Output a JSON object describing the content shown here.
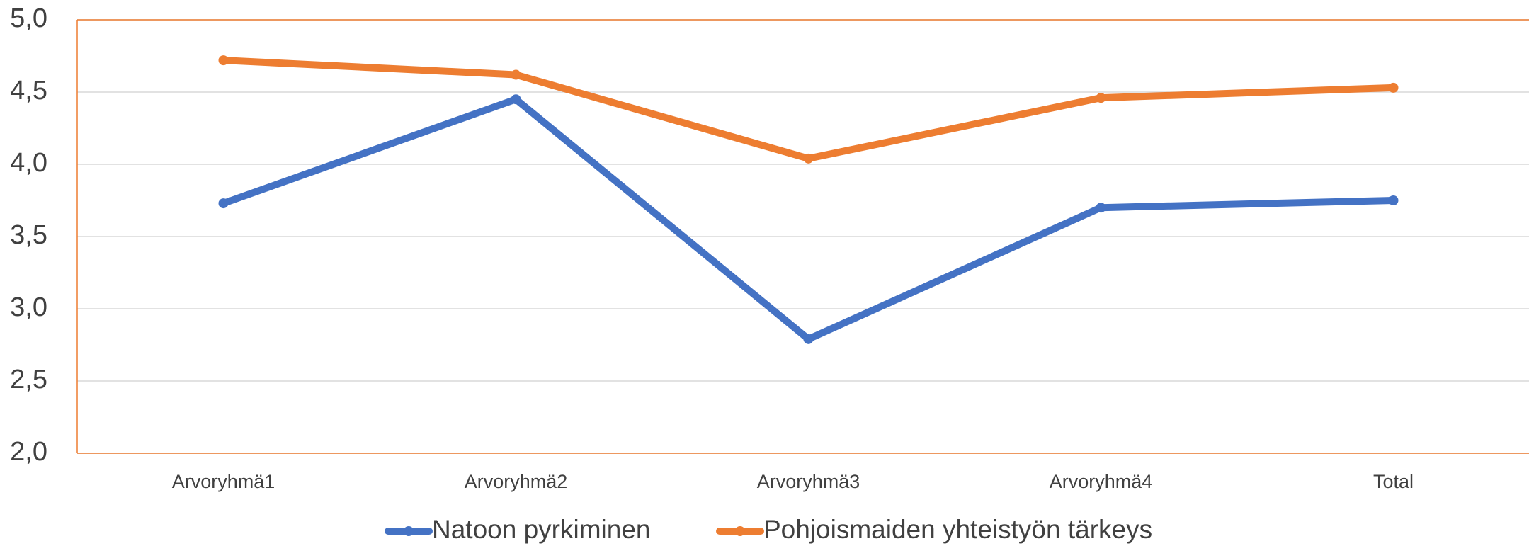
{
  "chart_data": {
    "type": "line",
    "categories": [
      "Arvoryhmä1",
      "Arvoryhmä2",
      "Arvoryhmä3",
      "Arvoryhmä4",
      "Total"
    ],
    "series": [
      {
        "name": "Natoon pyrkiminen",
        "color": "#4472c4",
        "values": [
          3.73,
          4.45,
          2.79,
          3.7,
          3.75
        ]
      },
      {
        "name": "Pohjoismaiden yhteistyön tärkeys",
        "color": "#ed7d31",
        "values": [
          4.72,
          4.62,
          4.04,
          4.46,
          4.53
        ]
      }
    ],
    "ylim": [
      2,
      5
    ],
    "yticks": [
      {
        "value": 2,
        "label": "2,0"
      },
      {
        "value": 2.5,
        "label": "2,5"
      },
      {
        "value": 3,
        "label": "3,0"
      },
      {
        "value": 3.5,
        "label": "3,5"
      },
      {
        "value": 4,
        "label": "4,0"
      },
      {
        "value": 4.5,
        "label": "4,5"
      },
      {
        "value": 5,
        "label": "5,0"
      }
    ],
    "grid": true,
    "legend": "bottom"
  }
}
